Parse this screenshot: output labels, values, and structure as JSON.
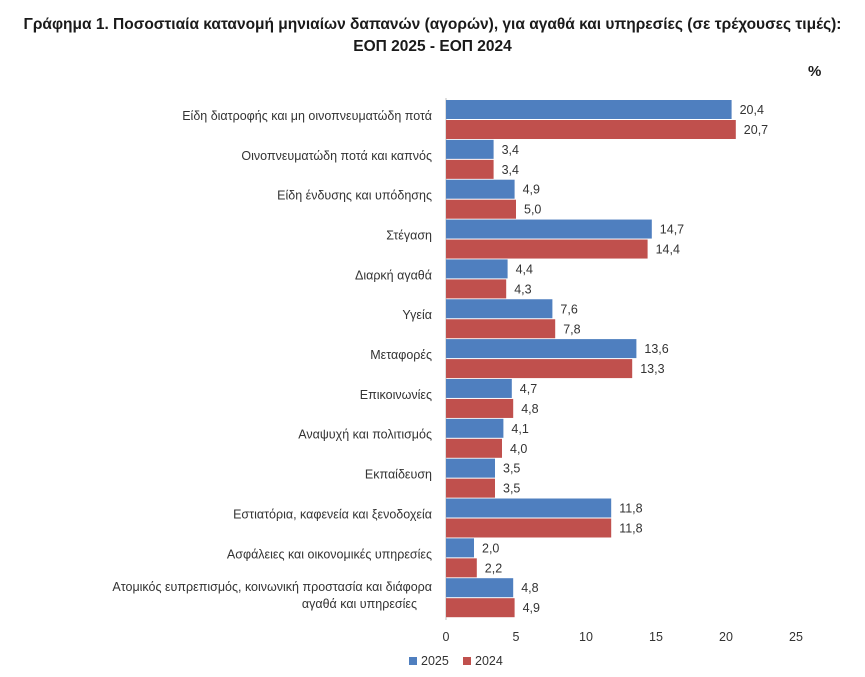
{
  "title": "Γράφημα 1. Ποσοστιαία κατανομή μηνιαίων δαπανών (αγορών), για αγαθά και υπηρεσίες (σε τρέχουσες τιμές): ΕΟΠ 2025 - ΕΟΠ 2024",
  "unit": "%",
  "chart_data": {
    "type": "bar",
    "orientation": "horizontal",
    "categories": [
      "Είδη διατροφής και μη οινοπνευματώδη ποτά",
      "Οινοπνευματώδη ποτά και καπνός",
      "Είδη ένδυσης και υπόδησης",
      "Στέγαση",
      "Διαρκή αγαθά",
      "Υγεία",
      "Μεταφορές",
      "Επικοινωνίες",
      "Αναψυχή και πολιτισμός",
      "Εκπαίδευση",
      "Εστιατόρια, καφενεία και ξενοδοχεία",
      "Ασφάλειες και  οικονομικές υπηρεσίες",
      "Ατομικός ευπρεπισμός, κοινωνική προστασία και διάφορα αγαθά και υπηρεσίες"
    ],
    "series": [
      {
        "name": "2025",
        "color": "#4f7fbf",
        "values": [
          20.4,
          3.4,
          4.9,
          14.7,
          4.4,
          7.6,
          13.6,
          4.7,
          4.1,
          3.5,
          11.8,
          2.0,
          4.8
        ],
        "labels": [
          "20,4",
          "3,4",
          "4,9",
          "14,7",
          "4,4",
          "7,6",
          "13,6",
          "4,7",
          "4,1",
          "3,5",
          "11,8",
          "2,0",
          "4,8"
        ]
      },
      {
        "name": "2024",
        "color": "#c0504d",
        "values": [
          20.7,
          3.4,
          5.0,
          14.4,
          4.3,
          7.8,
          13.3,
          4.8,
          4.0,
          3.5,
          11.8,
          2.2,
          4.9
        ],
        "labels": [
          "20,7",
          "3,4",
          "5,0",
          "14,4",
          "4,3",
          "7,8",
          "13,3",
          "4,8",
          "4,0",
          "3,5",
          "11,8",
          "2,2",
          "4,9"
        ]
      }
    ],
    "xlim": [
      0,
      25
    ],
    "xticks": [
      0,
      5,
      10,
      15,
      20,
      25
    ],
    "grid": false,
    "legend_position": "bottom"
  }
}
